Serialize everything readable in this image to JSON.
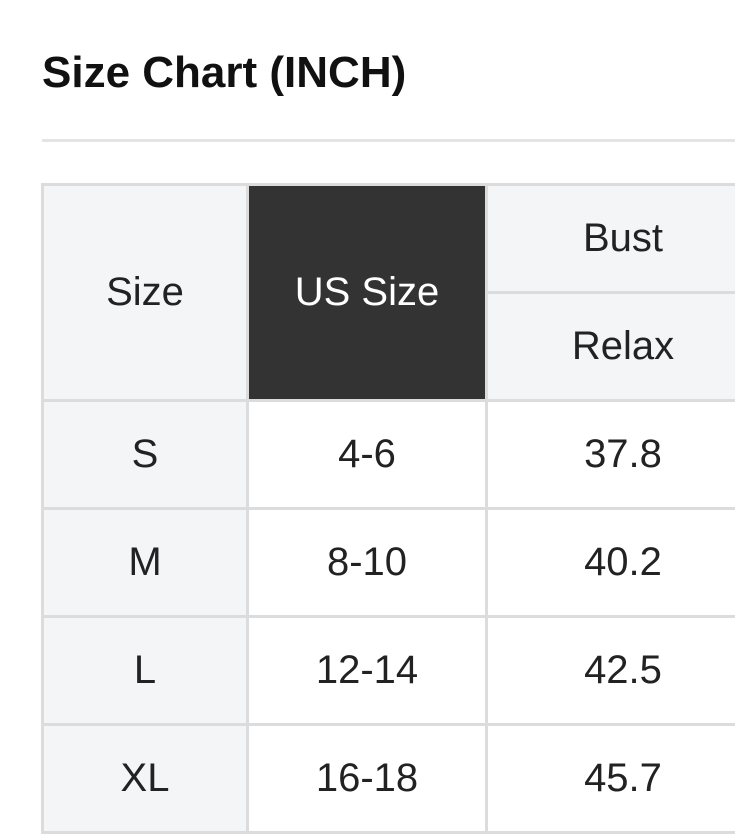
{
  "title": "Size Chart (INCH)",
  "headers": {
    "size": "Size",
    "us_size": "US Size",
    "bust": "Bust",
    "relax": "Relax"
  },
  "rows": [
    {
      "size": "S",
      "us": "4-6",
      "bust": "37.8"
    },
    {
      "size": "M",
      "us": "8-10",
      "bust": "40.2"
    },
    {
      "size": "L",
      "us": "12-14",
      "bust": "42.5"
    },
    {
      "size": "XL",
      "us": "16-18",
      "bust": "45.7"
    }
  ]
}
